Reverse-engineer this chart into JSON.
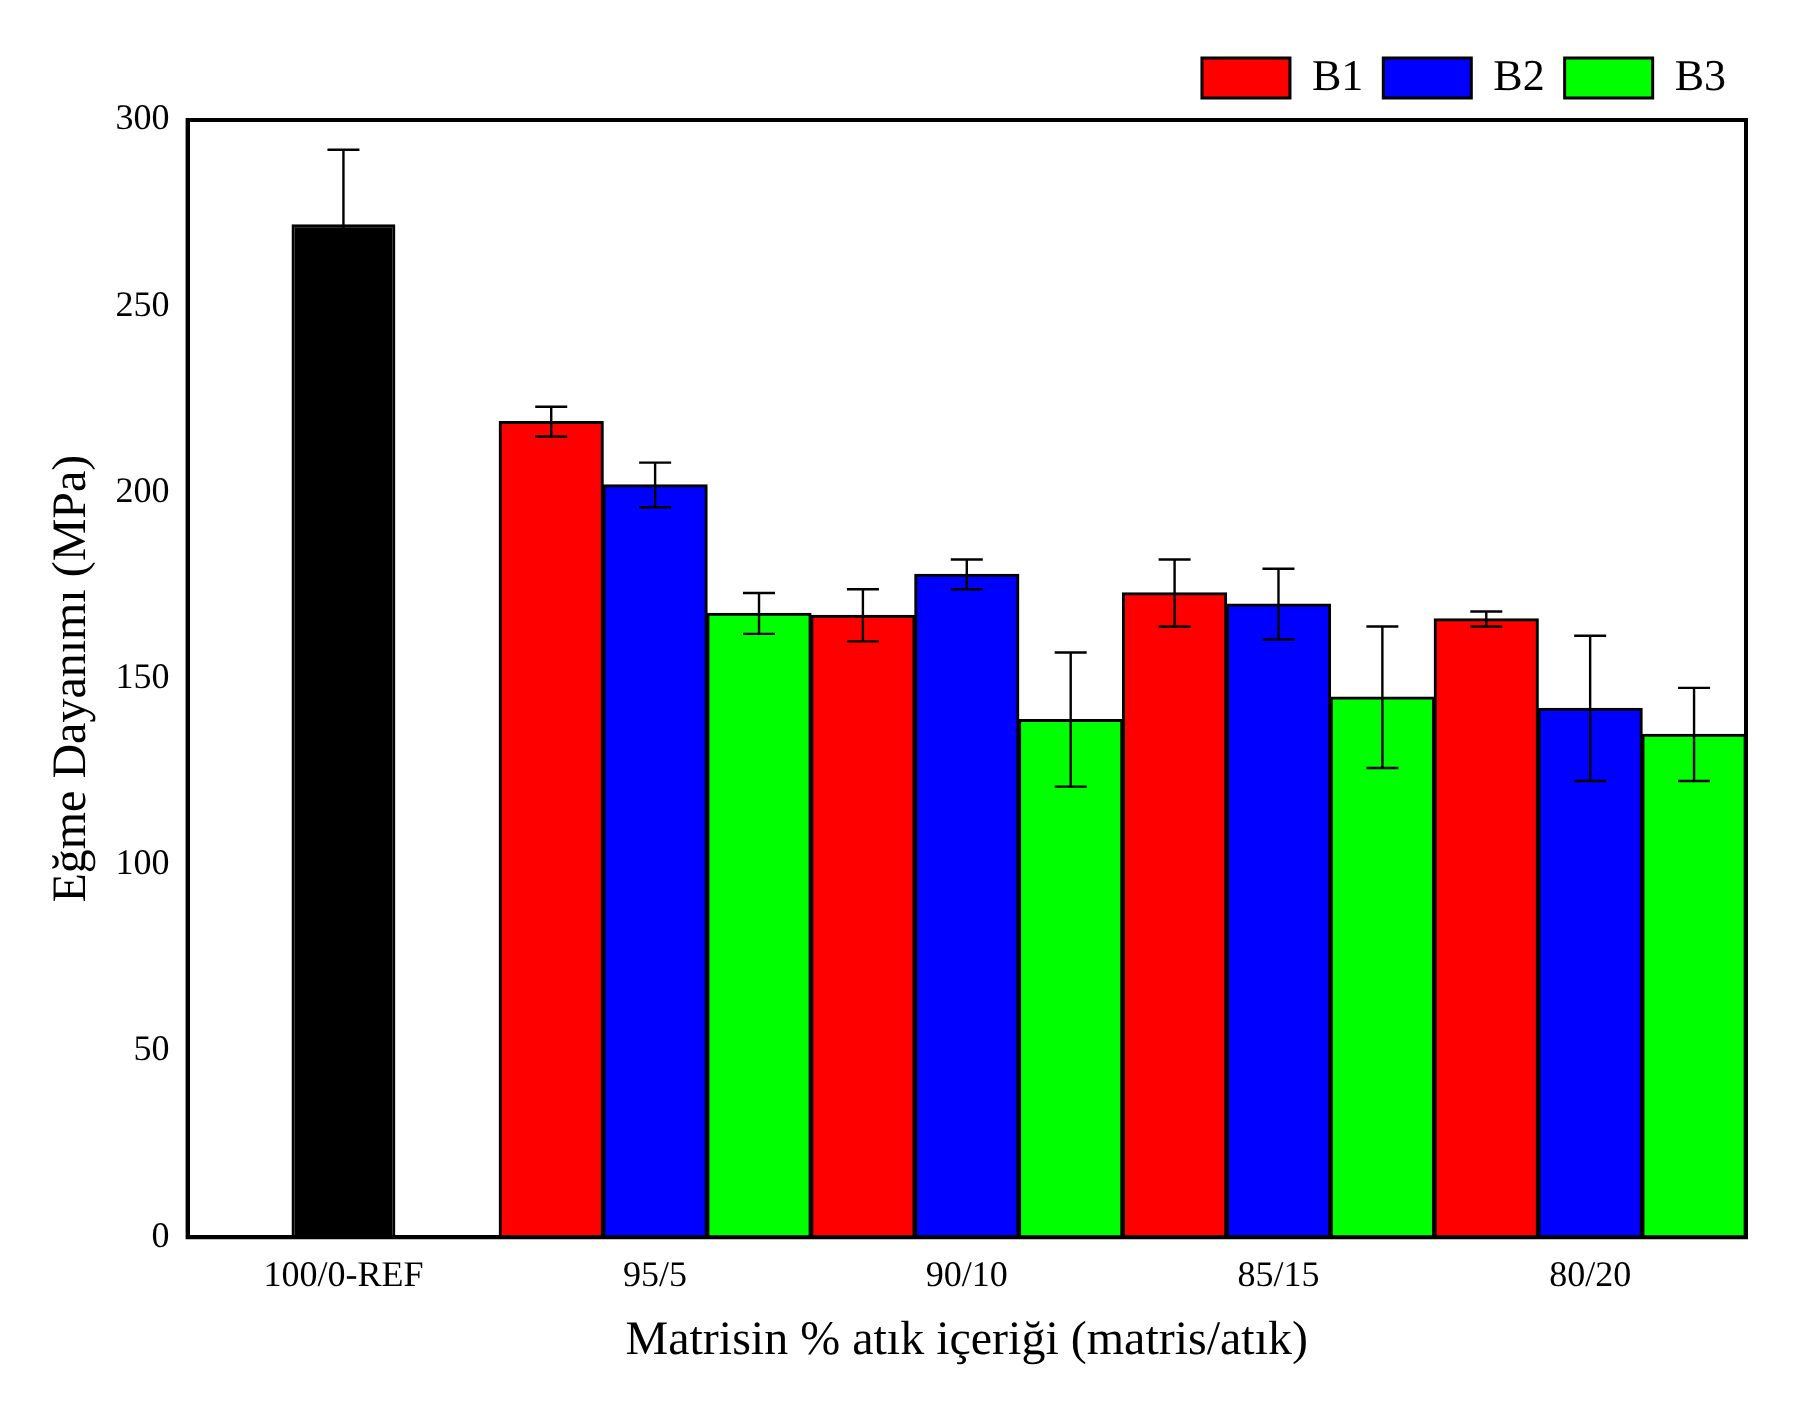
{
  "chart_data": {
    "type": "bar",
    "xlabel": "Matrisin % atık içeriği (matris/atık)",
    "ylabel": "Eğme Dayanımı (MPa)",
    "categories": [
      "100/0-REF",
      "95/5",
      "90/10",
      "85/15",
      "80/20"
    ],
    "series": [
      {
        "color": "#000000",
        "values": [
          272,
          null,
          null,
          null,
          null
        ],
        "errors": [
          20,
          null,
          null,
          null,
          null
        ]
      },
      {
        "name": "B1",
        "color": "#ff0000",
        "values": [
          null,
          219,
          167,
          173,
          166
        ],
        "errors": [
          null,
          4,
          7,
          9,
          2
        ]
      },
      {
        "name": "B2",
        "color": "#0000ff",
        "values": [
          null,
          202,
          178,
          170,
          142
        ],
        "errors": [
          null,
          6,
          4,
          9.5,
          19.5
        ]
      },
      {
        "name": "B3",
        "color": "#00ff00",
        "values": [
          null,
          167.5,
          139,
          145,
          135
        ],
        "errors": [
          null,
          5.5,
          18,
          19,
          12.5
        ]
      }
    ],
    "ylim": [
      0,
      300
    ],
    "yticks": [
      0,
      50,
      100,
      150,
      200,
      250,
      300
    ],
    "grid": false,
    "legend": "top right"
  }
}
